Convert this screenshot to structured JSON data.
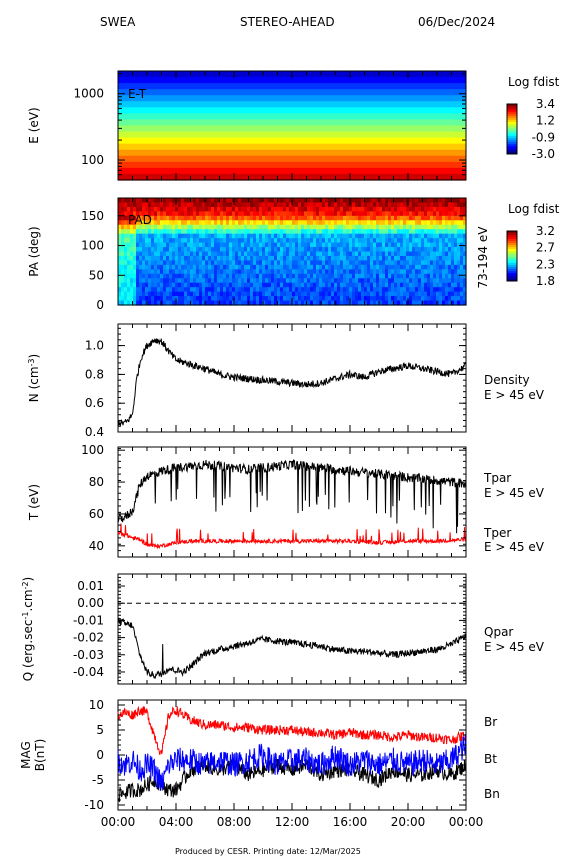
{
  "header": {
    "instrument": "SWEA",
    "mission": "STEREO-AHEAD",
    "date": "06/Dec/2024"
  },
  "footer": "Produced by CESR.   Printing date: 12/Mar/2025",
  "colors": {
    "black_trace": "#000000",
    "red_trace": "#ff0000",
    "blue_trace": "#0000ff"
  },
  "chart_data": [
    {
      "type": "heatmap",
      "id": "et",
      "inset_label": "E-T",
      "ylabel": "E (eV)",
      "yscale": "log",
      "ylim": [
        50,
        2200
      ],
      "yticks": [
        {
          "v": 100,
          "label": "100"
        },
        {
          "v": 1000,
          "label": "1000"
        }
      ],
      "colorbar_title": "Log fdist",
      "colorbar_ticks": [
        "3.4",
        "1.2",
        "-0.9",
        "-3.0"
      ],
      "colorbar_range": [
        -3.0,
        3.4
      ]
    },
    {
      "type": "heatmap",
      "id": "pad",
      "inset_label": "PAD",
      "ylabel": "PA (deg)",
      "ylim": [
        0,
        180
      ],
      "yticks": [
        {
          "v": 0,
          "label": "0"
        },
        {
          "v": 50,
          "label": "50"
        },
        {
          "v": 100,
          "label": "100"
        },
        {
          "v": 150,
          "label": "150"
        }
      ],
      "side_label": "73-194 eV",
      "colorbar_title": "Log fdist",
      "colorbar_ticks": [
        "3.2",
        "2.7",
        "2.3",
        "1.8"
      ],
      "colorbar_range": [
        1.8,
        3.2
      ]
    },
    {
      "type": "line",
      "id": "density",
      "ylabel": "N (cm",
      "ylabel_sup": "-3",
      "ylim": [
        0.4,
        1.15
      ],
      "yticks": [
        {
          "v": 0.4,
          "label": "0.4"
        },
        {
          "v": 0.6,
          "label": "0.6"
        },
        {
          "v": 0.8,
          "label": "0.8"
        },
        {
          "v": 1.0,
          "label": "1.0"
        }
      ],
      "series": [
        {
          "name": "Density",
          "sub": "E > 45 eV",
          "color": "#000000",
          "x": [
            0,
            0.3,
            0.6,
            1.0,
            1.3,
            1.6,
            2.0,
            2.5,
            3.0,
            3.5,
            4.0,
            5.0,
            6.0,
            7.0,
            8.0,
            9.0,
            10.0,
            11.0,
            12.0,
            13.0,
            14.0,
            15.0,
            16.0,
            17.0,
            18.0,
            19.0,
            20.0,
            21.0,
            22.0,
            23.0,
            24.0
          ],
          "y": [
            0.47,
            0.46,
            0.47,
            0.52,
            0.78,
            0.92,
            1.0,
            1.04,
            1.03,
            0.96,
            0.9,
            0.87,
            0.84,
            0.8,
            0.78,
            0.77,
            0.76,
            0.75,
            0.74,
            0.73,
            0.74,
            0.77,
            0.8,
            0.78,
            0.82,
            0.84,
            0.86,
            0.84,
            0.82,
            0.8,
            0.86
          ]
        }
      ]
    },
    {
      "type": "line",
      "id": "temperature",
      "ylabel": "T (eV)",
      "ylim": [
        33,
        102
      ],
      "yticks": [
        {
          "v": 40,
          "label": "40"
        },
        {
          "v": 60,
          "label": "60"
        },
        {
          "v": 80,
          "label": "80"
        },
        {
          "v": 100,
          "label": "100"
        }
      ],
      "series": [
        {
          "name": "Tpar",
          "sub": "E > 45 eV",
          "color": "#000000",
          "x": [
            0,
            0.5,
            1.0,
            1.5,
            2.0,
            2.5,
            3.0,
            4.0,
            5.0,
            6.0,
            7.0,
            8.0,
            9.0,
            10.0,
            11.0,
            12.0,
            13.0,
            14.0,
            15.0,
            16.0,
            17.0,
            18.0,
            19.0,
            20.0,
            21.0,
            22.0,
            23.0,
            24.0
          ],
          "y": [
            57,
            58,
            62,
            78,
            84,
            85,
            87,
            89,
            90,
            91,
            90,
            89,
            88,
            89,
            90,
            91,
            90,
            89,
            88,
            87,
            86,
            85,
            84,
            83,
            82,
            81,
            80,
            79
          ]
        },
        {
          "name": "Tper",
          "sub": "E > 45 eV",
          "color": "#ff0000",
          "x": [
            0,
            0.5,
            1.0,
            1.5,
            2.0,
            2.5,
            3.0,
            4.0,
            5.0,
            6.0,
            8.0,
            10.0,
            12.0,
            14.0,
            16.0,
            18.0,
            20.0,
            22.0,
            24.0
          ],
          "y": [
            48,
            47,
            45,
            44,
            41,
            40,
            40,
            42,
            43,
            43,
            43,
            43,
            43,
            43,
            43,
            42,
            43,
            43,
            44
          ]
        }
      ]
    },
    {
      "type": "line",
      "id": "heatflux",
      "ylabel": "Q (erg.sec",
      "ylabel_sup1": "-1",
      "ylabel_mid": ".cm",
      "ylabel_sup2": "-2",
      "ylabel_end": ")",
      "ylim": [
        -0.047,
        0.017
      ],
      "yticks": [
        {
          "v": -0.04,
          "label": "-0.04"
        },
        {
          "v": -0.03,
          "label": "-0.03"
        },
        {
          "v": -0.02,
          "label": "-0.02"
        },
        {
          "v": -0.01,
          "label": "-0.01"
        },
        {
          "v": 0.0,
          "label": "0.00"
        },
        {
          "v": 0.01,
          "label": "0.01"
        }
      ],
      "zero_line": true,
      "series": [
        {
          "name": "Qpar",
          "sub": "E > 45 eV",
          "color": "#000000",
          "x": [
            0,
            0.5,
            1.0,
            1.5,
            2.0,
            2.5,
            3.0,
            3.5,
            4.0,
            4.5,
            5.0,
            5.5,
            6.0,
            7.0,
            8.0,
            9.0,
            10.0,
            11.0,
            12.0,
            13.0,
            14.0,
            15.0,
            16.0,
            17.0,
            18.0,
            19.0,
            20.0,
            21.0,
            22.0,
            23.0,
            24.0
          ],
          "y": [
            -0.01,
            -0.012,
            -0.013,
            -0.03,
            -0.04,
            -0.042,
            -0.041,
            -0.038,
            -0.039,
            -0.04,
            -0.037,
            -0.033,
            -0.029,
            -0.027,
            -0.025,
            -0.023,
            -0.021,
            -0.022,
            -0.023,
            -0.024,
            -0.025,
            -0.027,
            -0.028,
            -0.028,
            -0.029,
            -0.03,
            -0.029,
            -0.028,
            -0.027,
            -0.024,
            -0.019
          ]
        }
      ]
    },
    {
      "type": "line",
      "id": "mag",
      "ylabel1": "MAG",
      "ylabel2": "B(nT)",
      "ylim": [
        -11,
        11
      ],
      "yticks": [
        {
          "v": -10,
          "label": "-10"
        },
        {
          "v": -5,
          "label": "-5"
        },
        {
          "v": 0,
          "label": "0"
        },
        {
          "v": 5,
          "label": "5"
        },
        {
          "v": 10,
          "label": "10"
        }
      ],
      "xticks": [
        "00:00",
        "04:00",
        "08:00",
        "12:00",
        "16:00",
        "20:00",
        "00:00"
      ],
      "series": [
        {
          "name": "Br",
          "color": "#000000",
          "x": [
            0,
            0.5,
            1.0,
            1.5,
            2.0,
            2.5,
            3.0,
            3.5,
            4.0,
            5.0,
            6.0,
            7.0,
            8.0,
            9.0,
            10.0,
            11.0,
            12.0,
            13.0,
            14.0,
            15.0,
            16.0,
            17.0,
            18.0,
            19.0,
            20.0,
            21.0,
            22.0,
            23.0,
            24.0
          ],
          "y": [
            -8,
            -7.5,
            -7,
            -7,
            -6,
            -5,
            -6,
            -7,
            -7,
            -3,
            -2,
            -3,
            -2,
            -4,
            -3,
            -2,
            -3,
            -2,
            -4,
            -3,
            -3,
            -4,
            -5,
            -3,
            -4,
            -4,
            -3,
            -4,
            -2
          ]
        },
        {
          "name": "Bt",
          "color": "#ff0000",
          "x": [
            0,
            0.5,
            1.0,
            1.5,
            2.0,
            2.5,
            3.0,
            3.5,
            4.0,
            5.0,
            6.0,
            7.0,
            8.0,
            9.0,
            10.0,
            11.0,
            12.0,
            13.0,
            14.0,
            15.0,
            16.0,
            17.0,
            18.0,
            19.0,
            20.0,
            21.0,
            22.0,
            23.0,
            24.0
          ],
          "y": [
            8,
            8.5,
            8,
            9,
            8.5,
            4,
            0,
            8,
            9,
            7,
            6,
            6,
            5.5,
            5.5,
            5,
            5,
            5,
            4.5,
            4.5,
            4,
            4.5,
            4,
            4,
            3.5,
            4,
            3.5,
            3.5,
            3,
            4
          ]
        },
        {
          "name": "Bn",
          "color": "#0000ff",
          "x": [
            0,
            0.5,
            1.0,
            1.5,
            2.0,
            2.5,
            3.0,
            3.5,
            4.0,
            5.0,
            6.0,
            7.0,
            8.0,
            9.0,
            10.0,
            11.0,
            12.0,
            13.0,
            14.0,
            15.0,
            16.0,
            17.0,
            18.0,
            19.0,
            20.0,
            21.0,
            22.0,
            23.0,
            24.0
          ],
          "y": [
            -1,
            -2,
            -1,
            -3,
            -2,
            -3,
            -6,
            -2,
            -1,
            -1,
            -2,
            -1,
            -2,
            -1,
            0,
            -2,
            -1,
            -1,
            -2,
            0,
            -2,
            -1,
            -2,
            -1,
            -2,
            -1,
            -2,
            -1,
            2
          ]
        }
      ]
    }
  ]
}
